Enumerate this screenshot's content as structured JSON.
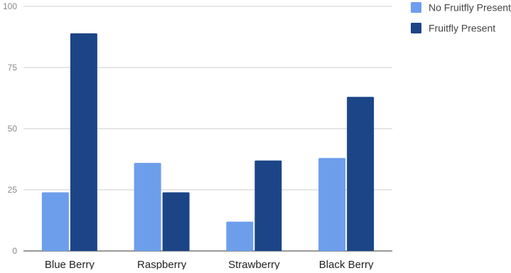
{
  "chart_data": {
    "type": "bar",
    "categories": [
      "Blue Berry",
      "Raspberry",
      "Strawberry",
      "Black Berry"
    ],
    "series": [
      {
        "name": "No Fruitfly Present",
        "values": [
          24,
          36,
          12,
          38
        ],
        "color": "#6d9eeb"
      },
      {
        "name": "Fruitfly Present",
        "values": [
          89,
          24,
          37,
          63
        ],
        "color": "#1c4587"
      }
    ],
    "ylim": [
      0,
      100
    ],
    "yticks": [
      0,
      25,
      50,
      75,
      100
    ],
    "grid": true,
    "legend_position": "right"
  }
}
